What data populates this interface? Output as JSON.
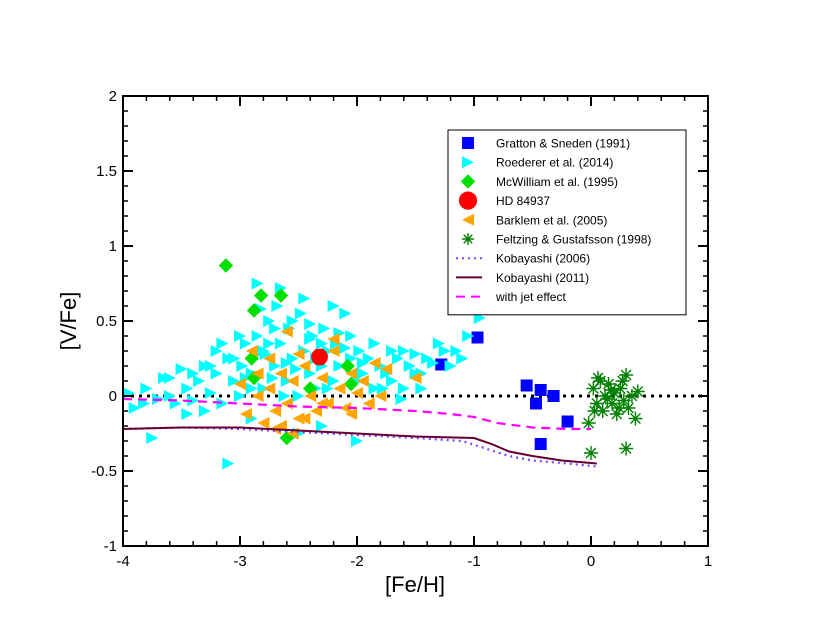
{
  "chart_data": {
    "type": "scatter",
    "title": "",
    "xlabel": "[Fe/H]",
    "ylabel": "[V/Fe]",
    "xlim": [
      -4,
      1
    ],
    "ylim": [
      -1,
      2
    ],
    "xticks": [
      -4,
      -3,
      -2,
      -1,
      0,
      1
    ],
    "xtick_labels": [
      "-4",
      "-3",
      "-2",
      "-1",
      "0",
      "1"
    ],
    "yticks": [
      -1,
      -0.5,
      0,
      0.5,
      1,
      1.5,
      2
    ],
    "ytick_labels": [
      "-1",
      "-0.5",
      "0",
      "0.5",
      "1",
      "1.5",
      "2"
    ],
    "legend_position": "top-right",
    "reference_line": {
      "y": 0,
      "style": "dotted",
      "color": "#000000"
    },
    "series": [
      {
        "name": "Gratton & Sneden (1991)",
        "marker": "square",
        "color": "#0000ff",
        "points": [
          [
            -0.97,
            0.39
          ],
          [
            -1.28,
            0.21
          ],
          [
            -0.55,
            0.07
          ],
          [
            -0.47,
            -0.05
          ],
          [
            -0.43,
            0.04
          ],
          [
            -0.32,
            0.0
          ],
          [
            -0.2,
            -0.17
          ],
          [
            -0.43,
            -0.32
          ]
        ]
      },
      {
        "name": "Roederer et al. (2014)",
        "marker": "triangle-right",
        "color": "#00ffff",
        "points": [
          [
            -3.95,
            0.02
          ],
          [
            -3.9,
            -0.08
          ],
          [
            -3.8,
            0.05
          ],
          [
            -3.7,
            -0.02
          ],
          [
            -3.65,
            0.12
          ],
          [
            -3.6,
            0.0
          ],
          [
            -3.55,
            -0.05
          ],
          [
            -3.5,
            0.18
          ],
          [
            -3.45,
            0.05
          ],
          [
            -3.4,
            -0.03
          ],
          [
            -3.35,
            0.1
          ],
          [
            -3.3,
            0.2
          ],
          [
            -3.25,
            0.02
          ],
          [
            -3.2,
            0.15
          ],
          [
            -3.15,
            -0.05
          ],
          [
            -3.1,
            0.25
          ],
          [
            -3.05,
            0.1
          ],
          [
            -3.0,
            0.0
          ],
          [
            -2.98,
            0.2
          ],
          [
            -2.95,
            0.35
          ],
          [
            -2.9,
            0.15
          ],
          [
            -2.85,
            0.4
          ],
          [
            -2.8,
            0.05
          ],
          [
            -2.78,
            0.28
          ],
          [
            -2.75,
            0.5
          ],
          [
            -2.7,
            0.2
          ],
          [
            -2.68,
            0.6
          ],
          [
            -2.65,
            0.35
          ],
          [
            -2.6,
            0.1
          ],
          [
            -2.58,
            0.45
          ],
          [
            -2.55,
            0.25
          ],
          [
            -2.5,
            0.0
          ],
          [
            -2.48,
            0.55
          ],
          [
            -2.45,
            0.3
          ],
          [
            -2.4,
            0.15
          ],
          [
            -2.38,
            0.4
          ],
          [
            -2.35,
            0.05
          ],
          [
            -2.3,
            0.2
          ],
          [
            -2.28,
            0.45
          ],
          [
            -2.25,
            0.3
          ],
          [
            -2.2,
            0.1
          ],
          [
            -2.18,
            0.35
          ],
          [
            -2.15,
            0.2
          ],
          [
            -2.1,
            0.55
          ],
          [
            -2.05,
            0.25
          ],
          [
            -2.0,
            0.1
          ],
          [
            -1.98,
            0.3
          ],
          [
            -1.95,
            0.15
          ],
          [
            -1.9,
            0.25
          ],
          [
            -1.85,
            0.05
          ],
          [
            -1.8,
            0.2
          ],
          [
            -1.75,
            0.15
          ],
          [
            -1.7,
            0.1
          ],
          [
            -1.65,
            0.25
          ],
          [
            -1.6,
            0.05
          ],
          [
            -1.55,
            0.2
          ],
          [
            -1.5,
            0.15
          ],
          [
            -1.45,
            0.05
          ],
          [
            -1.4,
            0.25
          ],
          [
            -1.3,
            0.35
          ],
          [
            -1.25,
            0.3
          ],
          [
            -1.2,
            0.2
          ],
          [
            -1.1,
            0.25
          ],
          [
            -0.95,
            0.52
          ],
          [
            -2.85,
            0.75
          ],
          [
            -2.65,
            0.72
          ],
          [
            -2.45,
            0.65
          ],
          [
            -2.2,
            0.6
          ],
          [
            -2.0,
            -0.3
          ],
          [
            -3.1,
            -0.45
          ],
          [
            -3.75,
            -0.28
          ],
          [
            -2.9,
            -0.15
          ],
          [
            -2.5,
            -0.25
          ],
          [
            -2.3,
            -0.2
          ],
          [
            -3.2,
            0.3
          ],
          [
            -3.0,
            0.4
          ],
          [
            -2.7,
            0.45
          ],
          [
            -2.4,
            0.38
          ],
          [
            -2.6,
            0.22
          ],
          [
            -2.8,
            0.3
          ],
          [
            -3.3,
            -0.1
          ],
          [
            -3.45,
            -0.12
          ],
          [
            -1.85,
            0.35
          ],
          [
            -1.7,
            0.3
          ],
          [
            -2.15,
            0.42
          ],
          [
            -2.55,
            0.5
          ],
          [
            -3.15,
            0.35
          ],
          [
            -3.05,
            0.25
          ],
          [
            -2.9,
            0.05
          ],
          [
            -1.6,
            0.3
          ],
          [
            -1.35,
            0.22
          ],
          [
            -1.15,
            0.3
          ],
          [
            -1.05,
            0.4
          ],
          [
            -1.5,
            0.28
          ],
          [
            -2.25,
            0.05
          ],
          [
            -2.62,
            0.0
          ],
          [
            -2.72,
            0.12
          ],
          [
            -2.95,
            0.12
          ],
          [
            -3.6,
            0.12
          ],
          [
            -3.82,
            -0.05
          ],
          [
            -2.35,
            0.25
          ],
          [
            -1.95,
            0.22
          ],
          [
            -1.78,
            0.05
          ],
          [
            -1.62,
            -0.02
          ],
          [
            -1.45,
            0.15
          ],
          [
            -2.1,
            0.32
          ],
          [
            -2.4,
            0.48
          ],
          [
            -2.82,
            0.58
          ],
          [
            -2.75,
            0.35
          ],
          [
            -2.52,
            0.18
          ],
          [
            -2.3,
            0.35
          ],
          [
            -2.05,
            0.4
          ],
          [
            -3.25,
            0.2
          ],
          [
            -3.4,
            0.15
          ]
        ]
      },
      {
        "name": "McWilliam et al. (1995)",
        "marker": "diamond",
        "color": "#00e000",
        "points": [
          [
            -3.12,
            0.87
          ],
          [
            -2.88,
            0.57
          ],
          [
            -2.82,
            0.67
          ],
          [
            -2.65,
            0.67
          ],
          [
            -2.9,
            0.25
          ],
          [
            -2.88,
            0.12
          ],
          [
            -2.6,
            -0.28
          ],
          [
            -2.08,
            0.2
          ],
          [
            -2.05,
            0.08
          ],
          [
            -2.4,
            0.05
          ]
        ]
      },
      {
        "name": "HD 84937",
        "marker": "circle",
        "color": "#ff0000",
        "points": [
          [
            -2.32,
            0.26
          ]
        ],
        "errorbar": 0.05
      },
      {
        "name": "Barklem et al. (2005)",
        "marker": "triangle-left",
        "color": "#ffa500",
        "points": [
          [
            -2.95,
            -0.12
          ],
          [
            -2.85,
            0.0
          ],
          [
            -2.8,
            -0.18
          ],
          [
            -2.75,
            0.05
          ],
          [
            -2.7,
            -0.1
          ],
          [
            -2.65,
            0.15
          ],
          [
            -2.6,
            -0.05
          ],
          [
            -2.55,
            0.1
          ],
          [
            -2.5,
            -0.15
          ],
          [
            -2.45,
            0.2
          ],
          [
            -2.4,
            0.0
          ],
          [
            -2.35,
            -0.1
          ],
          [
            -2.3,
            0.12
          ],
          [
            -2.25,
            -0.05
          ],
          [
            -2.2,
            0.3
          ],
          [
            -2.15,
            0.05
          ],
          [
            -2.1,
            -0.08
          ],
          [
            -2.05,
            0.15
          ],
          [
            -2.0,
            0.02
          ],
          [
            -1.95,
            0.1
          ],
          [
            -1.85,
            0.22
          ],
          [
            -1.8,
            0.0
          ],
          [
            -1.75,
            0.18
          ],
          [
            -1.5,
            0.12
          ],
          [
            -2.6,
            0.43
          ],
          [
            -2.2,
            0.38
          ],
          [
            -2.75,
            0.25
          ],
          [
            -2.9,
            0.3
          ],
          [
            -2.5,
            0.28
          ],
          [
            -2.65,
            -0.2
          ],
          [
            -2.45,
            -0.15
          ],
          [
            -2.3,
            -0.05
          ],
          [
            -2.05,
            -0.12
          ],
          [
            -3.0,
            0.08
          ],
          [
            -2.85,
            0.15
          ],
          [
            -1.9,
            -0.05
          ],
          [
            -2.7,
            -0.22
          ],
          [
            -2.55,
            -0.25
          ]
        ]
      },
      {
        "name": "Feltzing & Gustafsson  (1998)",
        "marker": "asterisk",
        "color": "#008000",
        "points": [
          [
            -0.02,
            -0.18
          ],
          [
            0.02,
            0.05
          ],
          [
            0.05,
            -0.05
          ],
          [
            0.08,
            0.1
          ],
          [
            0.1,
            -0.1
          ],
          [
            0.12,
            0.0
          ],
          [
            0.15,
            0.08
          ],
          [
            0.18,
            -0.05
          ],
          [
            0.2,
            0.02
          ],
          [
            0.22,
            -0.12
          ],
          [
            0.25,
            0.05
          ],
          [
            0.28,
            -0.03
          ],
          [
            0.3,
            0.14
          ],
          [
            0.32,
            -0.08
          ],
          [
            0.35,
            0.0
          ],
          [
            0.38,
            -0.15
          ],
          [
            0.4,
            0.03
          ],
          [
            0.0,
            -0.38
          ],
          [
            0.3,
            -0.35
          ],
          [
            0.06,
            0.12
          ],
          [
            0.14,
            -0.02
          ],
          [
            0.24,
            -0.08
          ],
          [
            0.03,
            -0.1
          ],
          [
            0.17,
            0.04
          ],
          [
            0.27,
            0.1
          ]
        ]
      },
      {
        "name": "Kobayashi (2006)",
        "type": "line",
        "style": "dotted",
        "color": "#8040ff",
        "points": [
          [
            -4.0,
            -0.22
          ],
          [
            -3.5,
            -0.21
          ],
          [
            -3.0,
            -0.22
          ],
          [
            -2.5,
            -0.24
          ],
          [
            -2.0,
            -0.26
          ],
          [
            -1.5,
            -0.28
          ],
          [
            -1.1,
            -0.3
          ],
          [
            -0.9,
            -0.35
          ],
          [
            -0.7,
            -0.4
          ],
          [
            -0.5,
            -0.43
          ],
          [
            -0.2,
            -0.45
          ],
          [
            0.05,
            -0.47
          ]
        ]
      },
      {
        "name": "Kobayashi (2011)",
        "type": "line",
        "style": "solid",
        "color": "#660033",
        "points": [
          [
            -4.0,
            -0.22
          ],
          [
            -3.5,
            -0.21
          ],
          [
            -3.0,
            -0.21
          ],
          [
            -2.5,
            -0.23
          ],
          [
            -2.0,
            -0.25
          ],
          [
            -1.5,
            -0.27
          ],
          [
            -1.0,
            -0.28
          ],
          [
            -0.85,
            -0.32
          ],
          [
            -0.7,
            -0.37
          ],
          [
            -0.5,
            -0.4
          ],
          [
            -0.25,
            -0.43
          ],
          [
            0.05,
            -0.45
          ]
        ]
      },
      {
        "name": "with jet effect",
        "type": "line",
        "style": "dashed",
        "color": "#ff00ff",
        "points": [
          [
            -4.0,
            -0.02
          ],
          [
            -3.5,
            -0.03
          ],
          [
            -3.0,
            -0.05
          ],
          [
            -2.5,
            -0.07
          ],
          [
            -2.0,
            -0.08
          ],
          [
            -1.5,
            -0.1
          ],
          [
            -1.2,
            -0.12
          ],
          [
            -1.0,
            -0.14
          ],
          [
            -0.8,
            -0.18
          ],
          [
            -0.5,
            -0.21
          ],
          [
            -0.2,
            -0.22
          ],
          [
            0.0,
            -0.22
          ]
        ]
      }
    ]
  }
}
